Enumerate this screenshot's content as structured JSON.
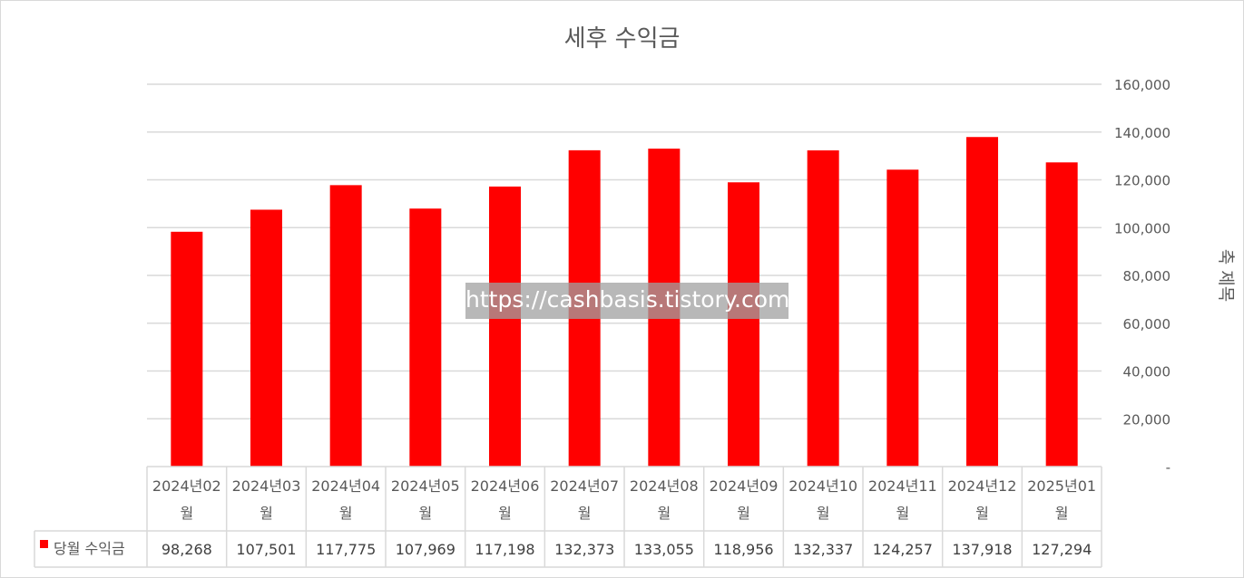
{
  "chart_data": {
    "type": "bar",
    "title": "세후 수익금",
    "categories": [
      {
        "line1": "2024년02",
        "line2": "월"
      },
      {
        "line1": "2024년03",
        "line2": "월"
      },
      {
        "line1": "2024년04",
        "line2": "월"
      },
      {
        "line1": "2024년05",
        "line2": "월"
      },
      {
        "line1": "2024년06",
        "line2": "월"
      },
      {
        "line1": "2024년07",
        "line2": "월"
      },
      {
        "line1": "2024년08",
        "line2": "월"
      },
      {
        "line1": "2024년09",
        "line2": "월"
      },
      {
        "line1": "2024년10",
        "line2": "월"
      },
      {
        "line1": "2024년11",
        "line2": "월"
      },
      {
        "line1": "2024년12",
        "line2": "월"
      },
      {
        "line1": "2025년01",
        "line2": "월"
      }
    ],
    "series": [
      {
        "name": "당월 수익금",
        "color": "#ff0000",
        "values": [
          98268,
          107501,
          117775,
          107969,
          117198,
          132373,
          133055,
          118956,
          132337,
          124257,
          137918,
          127294
        ],
        "value_labels": [
          "98,268",
          "107,501",
          "117,775",
          "107,969",
          "117,198",
          "132,373",
          "133,055",
          "118,956",
          "132,337",
          "124,257",
          "137,918",
          "127,294"
        ]
      }
    ],
    "ylabel": "축 제목",
    "y_axis_position": "right",
    "ylim": [
      0,
      160000
    ],
    "ytick_labels": [
      "-",
      "20,000",
      "40,000",
      "60,000",
      "80,000",
      "100,000",
      "120,000",
      "140,000",
      "160,000"
    ],
    "grid": true,
    "legend": "data-table",
    "data_table": true
  },
  "watermark": "https://cashbasis.tistory.com"
}
